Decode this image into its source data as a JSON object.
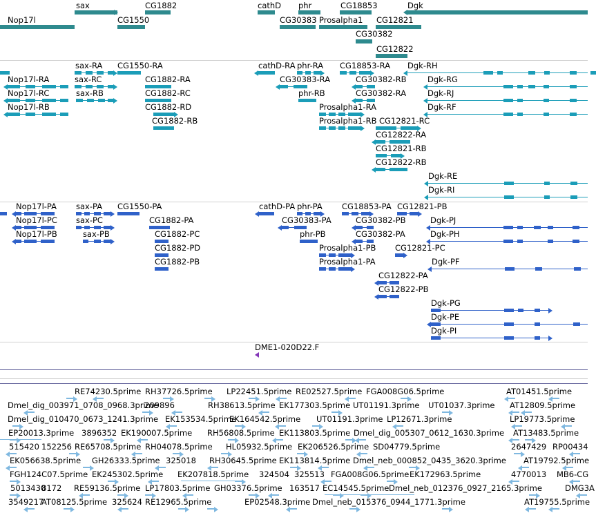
{
  "colors": {
    "gene": "#2e8a8e",
    "transcript": "#1b9db8",
    "protein": "#2f61c9",
    "clone": "#8436b8",
    "est": "#7fb8e0",
    "separator": "#cfcfcf",
    "track_line": "#6a6aa0"
  },
  "gene_track": {
    "labels": [
      "sax",
      "CG1882",
      "cathD",
      "phr",
      "CG18853",
      "Dgk",
      "Nop17l",
      "CG1550",
      "CG30383",
      "Prosalpha1",
      "CG12821",
      "CG30382",
      "CG12822"
    ]
  },
  "transcript_track": {
    "labels": [
      "sax-RA",
      "CG1550-RA",
      "cathD-RA",
      "phr-RA",
      "CG18853-RA",
      "Dgk-RH",
      "Nop17l-RA",
      "sax-RC",
      "CG1882-RA",
      "CG30383-RA",
      "CG30382-RB",
      "Dgk-RG",
      "Nop17l-RC",
      "sax-RB",
      "CG1882-RC",
      "phr-RB",
      "CG30382-RA",
      "Dgk-RJ",
      "Nop17l-RB",
      "CG1882-RD",
      "Prosalpha1-RA",
      "Dgk-RF",
      "CG1882-RB",
      "Prosalpha1-RB",
      "CG12821-RC",
      "CG12822-RA",
      "CG12821-RB",
      "CG12822-RB",
      "Dgk-RE",
      "Dgk-RI"
    ]
  },
  "protein_track": {
    "labels": [
      "Nop17l-PA",
      "sax-PA",
      "CG1550-PA",
      "cathD-PA",
      "phr-PA",
      "CG18853-PA",
      "CG12821-PB",
      "Nop17l-PC",
      "sax-PC",
      "CG1882-PA",
      "CG30383-PA",
      "CG30382-PB",
      "Dgk-PJ",
      "Nop17l-PB",
      "sax-PB",
      "CG1882-PC",
      "phr-PB",
      "CG30382-PA",
      "Dgk-PH",
      "CG1882-PD",
      "Prosalpha1-PB",
      "CG12821-PC",
      "CG1882-PB",
      "Prosalpha1-PA",
      "Dgk-PF",
      "CG12822-PA",
      "CG12822-PB",
      "Dgk-PG",
      "Dgk-PE",
      "Dgk-PI"
    ]
  },
  "clone_track": {
    "labels": [
      "DME1-020D22.F"
    ]
  },
  "est_track": {
    "labels": [
      "RE74230.5prime",
      "RH37726.5prime",
      "LP22451.5prime",
      "RE02527.5prime",
      "FGA008G06.5prime",
      "AT01451.5prime",
      "Dmel_dig_003971_0708_0968.3prime",
      "209896",
      "RH38613.5prime",
      "EK177303.5prime",
      "UT01191.3prime",
      "UT01037.3prime",
      "AT12809.5prime",
      "Dmel_dig_010470_0673_1241.3prime",
      "EK153534.5prime",
      "EK164542.5prime",
      "UT01191.3prime",
      "LP12671.3prime",
      "LP19773.5prime",
      "EP20013.3prime",
      "3896352",
      "EK190007.5prime",
      "RH56808.5prime",
      "EK113803.5prime",
      "Dmel_dig_005307_0612_1630.3prime",
      "AT13483.5prime",
      "515420",
      "152256",
      "RE65708.5prime",
      "RH04078.5prime",
      "HL05932.5prime",
      "EK206526.5prime",
      "SD04779.5prime",
      "2647429",
      "RP00434",
      "EK056638.5prime",
      "GH26333.5prime",
      "325018",
      "RH30645.5prime",
      "EK113814.5prime",
      "Dmel_neb_000852_0435_3620.3prime",
      "AT19792.5prime",
      "FGH124C07.5prime",
      "EK245302.5prime",
      "EK207818.5prime",
      "324504",
      "325513",
      "FGA008G06.5prime",
      "EK172963.5prime",
      "4770013",
      "MB6-CG",
      "5013430",
      "8172",
      "RE59136.5prime",
      "LP17803.5prime",
      "GH03376.5prime",
      "163517",
      "EC14545.5prime",
      "Dmel_neb_012376_0927_2165.3prime",
      "DMG3A",
      "3549217",
      "AT08125.5prime",
      "325624",
      "RE12965.5prime",
      "EP02548.3prime",
      "Dmel_neb_015376_0944_1771.3prime",
      "AT19755.5prime"
    ]
  }
}
